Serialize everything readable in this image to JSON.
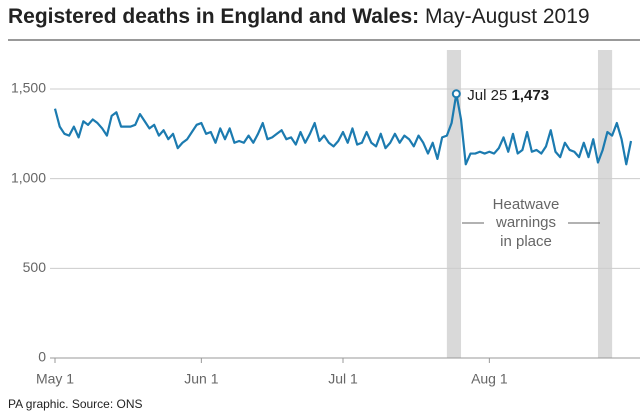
{
  "chart_data": {
    "type": "line",
    "title": "Registered deaths in England and Wales:",
    "subtitle": "May-August 2019",
    "source": "PA graphic. Source: ONS",
    "xlim": [
      "2019-05-01",
      "2019-08-31"
    ],
    "xticks": [
      {
        "value": "2019-05-01",
        "label": "May 1"
      },
      {
        "value": "2019-06-01",
        "label": "Jun 1"
      },
      {
        "value": "2019-07-01",
        "label": "Jul 1"
      },
      {
        "value": "2019-08-01",
        "label": "Aug 1"
      }
    ],
    "ylim": [
      0,
      1550
    ],
    "yticks": [
      0,
      500,
      {
        "value": 1000,
        "label": "1,000"
      },
      {
        "value": 1500,
        "label": "1,500"
      }
    ],
    "grid": true,
    "highlights": [
      [
        "2019-07-23",
        "2019-07-26"
      ],
      [
        "2019-08-24",
        "2019-08-27"
      ]
    ],
    "highlight_color": "#d9d9d9",
    "highlight_label": [
      "Heatwave",
      "warnings",
      "in place"
    ],
    "annotation": {
      "text": "Jul 25",
      "x": "2019-07-25",
      "value": 1473,
      "value_label": "1,473"
    },
    "series": [
      {
        "color": "#1c7bb0",
        "start": "2019-05-01",
        "values": [
          1390,
          1290,
          1250,
          1240,
          1290,
          1230,
          1320,
          1300,
          1330,
          1310,
          1280,
          1240,
          1350,
          1370,
          1290,
          1290,
          1290,
          1300,
          1360,
          1320,
          1280,
          1300,
          1240,
          1270,
          1220,
          1250,
          1170,
          1200,
          1220,
          1260,
          1300,
          1310,
          1250,
          1260,
          1200,
          1280,
          1220,
          1280,
          1200,
          1210,
          1200,
          1240,
          1200,
          1250,
          1310,
          1220,
          1230,
          1250,
          1270,
          1220,
          1230,
          1190,
          1260,
          1200,
          1250,
          1310,
          1210,
          1240,
          1200,
          1180,
          1210,
          1260,
          1200,
          1280,
          1190,
          1200,
          1260,
          1200,
          1180,
          1250,
          1170,
          1200,
          1250,
          1200,
          1240,
          1220,
          1180,
          1240,
          1200,
          1140,
          1200,
          1110,
          1230,
          1240,
          1310,
          1473,
          1330,
          1080,
          1140,
          1140,
          1150,
          1140,
          1150,
          1140,
          1170,
          1230,
          1150,
          1250,
          1140,
          1160,
          1260,
          1150,
          1160,
          1140,
          1180,
          1270,
          1150,
          1120,
          1200,
          1160,
          1150,
          1120,
          1200,
          1120,
          1220,
          1090,
          1160,
          1260,
          1240,
          1310,
          1220,
          1080,
          1210
        ]
      }
    ]
  }
}
